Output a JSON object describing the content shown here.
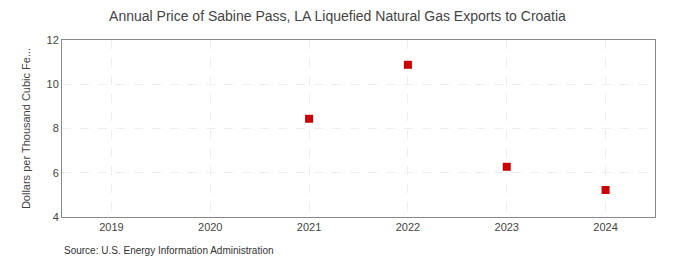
{
  "chart_data": {
    "type": "scatter",
    "title": "Annual Price of Sabine Pass, LA Liquefied Natural Gas Exports to Croatia",
    "ylabel": "Dollars per Thousand Cubic Fe...",
    "source": "Source: U.S. Energy Information Administration",
    "x": [
      2021,
      2022,
      2023,
      2024
    ],
    "values": [
      8.44,
      10.88,
      6.27,
      5.22
    ],
    "color": "#cc0000",
    "marker": "square",
    "xlim": [
      2018.5,
      2024.5
    ],
    "xticks": [
      2019,
      2020,
      2021,
      2022,
      2023,
      2024
    ],
    "ylim": [
      4,
      12
    ],
    "yticks": [
      4,
      6,
      8,
      10,
      12
    ],
    "grid": true
  }
}
